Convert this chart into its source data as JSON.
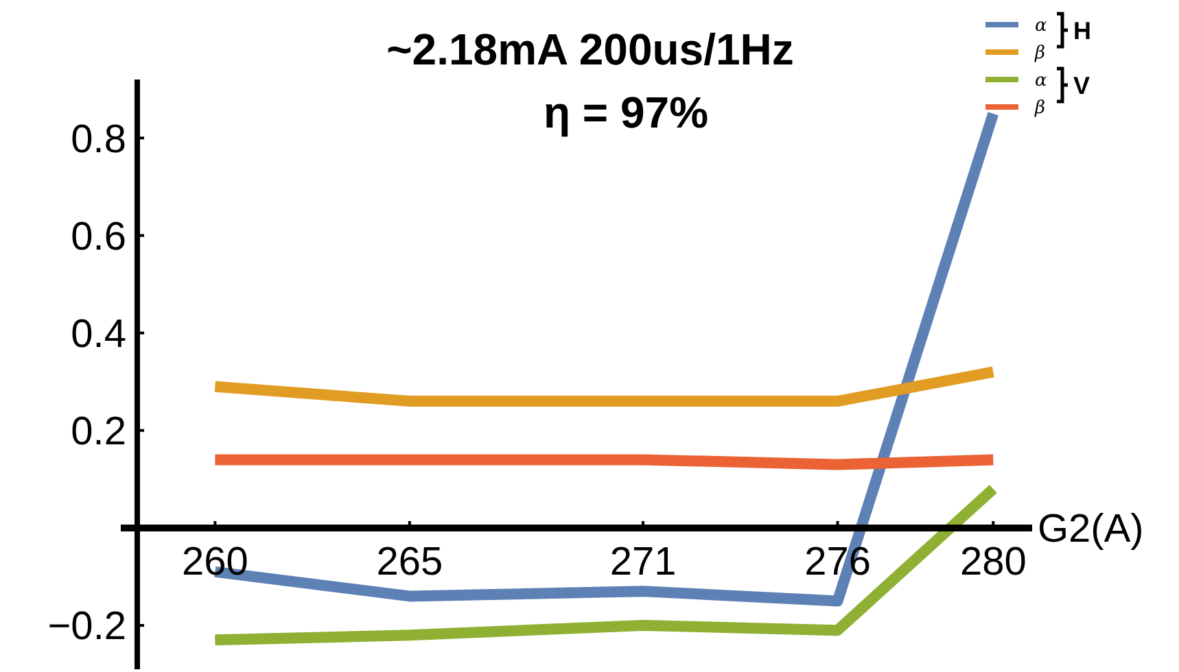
{
  "chart_data": {
    "type": "line",
    "title": "~2.18mA  200us/1Hz",
    "subtitle": "η = 97%",
    "xlabel": "G2(A)",
    "x": [
      260,
      265,
      271,
      276,
      280
    ],
    "xlim": [
      258,
      281
    ],
    "xticks": [
      260,
      265,
      271,
      276,
      280
    ],
    "ylim": [
      -0.29,
      0.92
    ],
    "yticks": [
      {
        "value": -0.2,
        "label": "−0.2"
      },
      0.2,
      0.4,
      0.6,
      0.8
    ],
    "series": [
      {
        "name": "α",
        "color": "#5e81b5",
        "values": [
          -0.09,
          -0.14,
          -0.13,
          -0.15,
          0.85
        ]
      },
      {
        "name": "β",
        "color": "#e19c24",
        "values": [
          0.29,
          0.26,
          0.26,
          0.26,
          0.32
        ]
      },
      {
        "name": "α",
        "color": "#8fb032",
        "values": [
          -0.23,
          -0.22,
          -0.2,
          -0.21,
          0.08
        ]
      },
      {
        "name": "β",
        "color": "#eb6235",
        "values": [
          0.14,
          0.14,
          0.14,
          0.13,
          0.14
        ]
      }
    ],
    "annotations": [
      "H",
      "V"
    ],
    "legend": "top right",
    "marker": "none",
    "line_style": "solid"
  }
}
